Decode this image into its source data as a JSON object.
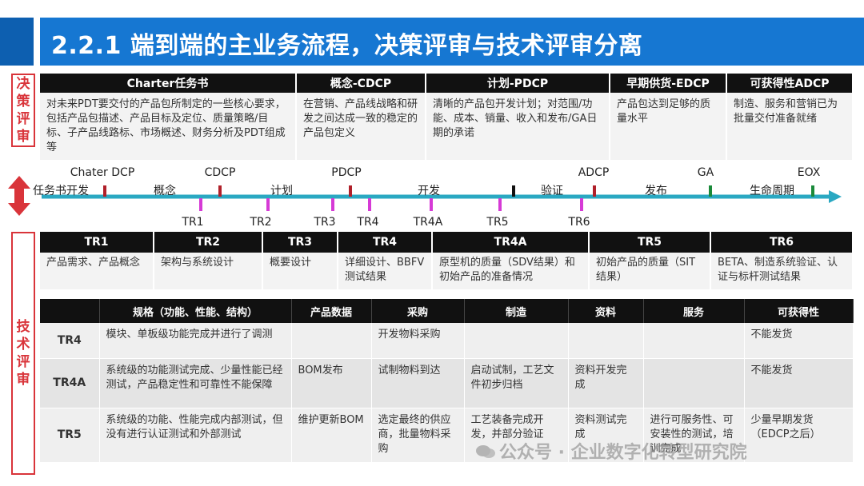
{
  "title": "2.2.1 端到端的主业务流程，决策评审与技术评审分离",
  "side_labels": {
    "decision": "决策评审",
    "technical": "技术评审"
  },
  "decision": {
    "headers": [
      "Charter任务书",
      "概念-CDCP",
      "计划-PDCP",
      "早期供货-EDCP",
      "可获得性ADCP"
    ],
    "cells": [
      "对未来PDT要交付的产品包所制定的一些核心要求，包括产品包描述、产品目标及定位、质量策略/目标、子产品线路标、市场概述、财务分析及PDT组成等",
      "在营销、产品线战略和研发之间达成一致的稳定的产品包定义",
      "清晰的产品包开发计划；对范围/功能、成本、销量、收入和发布/GA日期的承诺",
      "产品包达到足够的质量水平",
      "制造、服务和营销已为批量交付准备就绪"
    ]
  },
  "timeline": {
    "top_labels": [
      "Chater DCP",
      "CDCP",
      "PDCP",
      "ADCP",
      "GA",
      "EOX"
    ],
    "phase_labels": [
      "任务书开发",
      "概念",
      "计划",
      "开发",
      "验证",
      "发布",
      "生命周期"
    ],
    "bottom_labels": [
      "TR1",
      "TR2",
      "TR3",
      "TR4",
      "TR4A",
      "TR5",
      "TR6"
    ]
  },
  "tr": {
    "headers": [
      "TR1",
      "TR2",
      "TR3",
      "TR4",
      "TR4A",
      "TR5",
      "TR6"
    ],
    "cells": [
      "产品需求、产品概念",
      "架构与系统设计",
      "概要设计",
      "详细设计、BBFV测试结果",
      "原型机的质量（SDV结果）和初始产品的准备情况",
      "初始产品的质量（SIT结果）",
      "BETA、制造系统验证、认证与标杆测试结果"
    ]
  },
  "grid": {
    "headers": [
      "",
      "规格（功能、性能、结构）",
      "产品数据",
      "采购",
      "制造",
      "资料",
      "服务",
      "可获得性"
    ],
    "rows": [
      {
        "label": "TR4",
        "cells": [
          "模块、单板级功能完成并进行了调测",
          "",
          "开发物料采购",
          "",
          "",
          "",
          "不能发货"
        ]
      },
      {
        "label": "TR4A",
        "cells": [
          "系统级的功能测试完成、少量性能已经测试，产品稳定性和可靠性不能保障",
          "BOM发布",
          "试制物料到达",
          "启动试制，工艺文件初步归档",
          "资料开发完成",
          "",
          "不能发货"
        ]
      },
      {
        "label": "TR5",
        "cells": [
          "系统级的功能、性能完成内部测试，但没有进行认证测试和外部测试",
          "维护更新BOM",
          "选定最终的供应商，批量物料采购",
          "工艺装备完成开发，并部分验证",
          "资料测试完成",
          "进行可服务性、可安装性的测试，培训完成",
          "少量早期发货（EDCP之后）"
        ]
      }
    ]
  },
  "watermark": "公众号 · 企业数字化转型研究院",
  "colors": {
    "title_bg": "#1677d2",
    "side_red": "#d9343a",
    "timeline": "#2aa8c2",
    "dcp_red": "#b0202a",
    "tr_magenta": "#d63ad6",
    "ga_green": "#1a8a3a",
    "header_black": "#111111"
  }
}
